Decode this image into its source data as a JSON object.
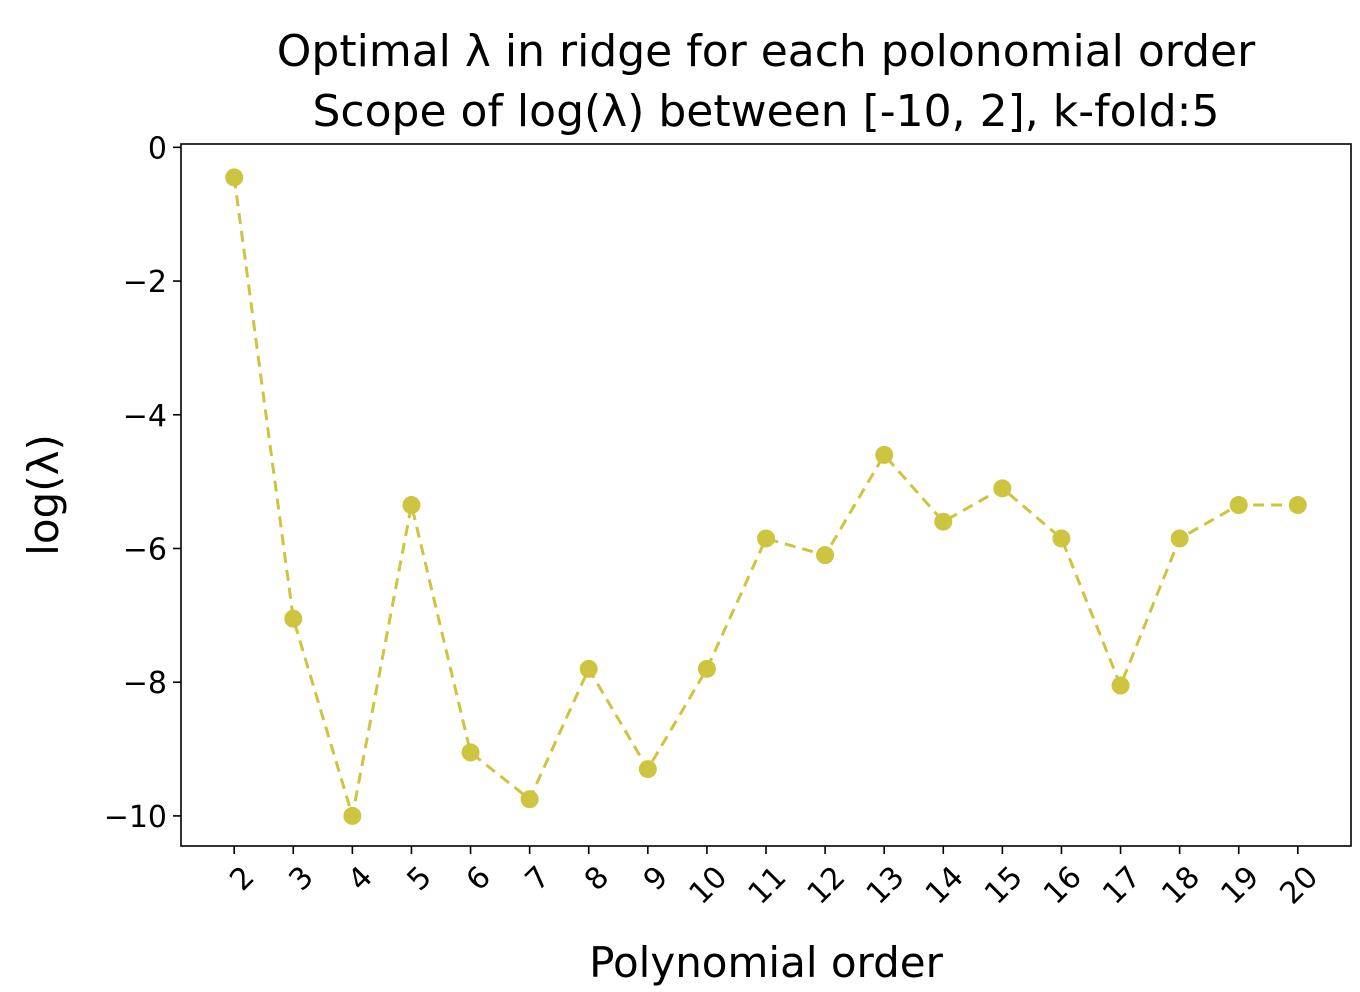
{
  "chart_data": {
    "type": "line",
    "title_line1": "Optimal λ in ridge for each polonomial order",
    "title_line2": "Scope of log(λ) between [-10, 2], k-fold:5",
    "xlabel": "Polynomial order",
    "ylabel": "log(λ)",
    "x": [
      2,
      3,
      4,
      5,
      6,
      7,
      8,
      9,
      10,
      11,
      12,
      13,
      14,
      15,
      16,
      17,
      18,
      19,
      20
    ],
    "y": [
      -0.45,
      -7.05,
      -10.0,
      -5.35,
      -9.05,
      -9.75,
      -7.8,
      -9.3,
      -7.8,
      -5.85,
      -6.1,
      -4.6,
      -5.6,
      -5.1,
      -5.85,
      -8.05,
      -5.85,
      -5.35,
      -5.35
    ],
    "xticks": [
      "2",
      "3",
      "4",
      "5",
      "6",
      "7",
      "8",
      "9",
      "10",
      "11",
      "12",
      "13",
      "14",
      "15",
      "16",
      "17",
      "18",
      "19",
      "20"
    ],
    "yticks": [
      0,
      -2,
      -4,
      -6,
      -8,
      -10
    ],
    "ytick_labels": [
      "0",
      "−2",
      "−4",
      "−6",
      "−8",
      "−10"
    ],
    "xlim": [
      1.1,
      20.9
    ],
    "ylim": [
      -10.45,
      0.05
    ],
    "line_style": "dashed",
    "marker": "circle",
    "color": "#cdc43f",
    "grid": false,
    "legend": "none"
  }
}
